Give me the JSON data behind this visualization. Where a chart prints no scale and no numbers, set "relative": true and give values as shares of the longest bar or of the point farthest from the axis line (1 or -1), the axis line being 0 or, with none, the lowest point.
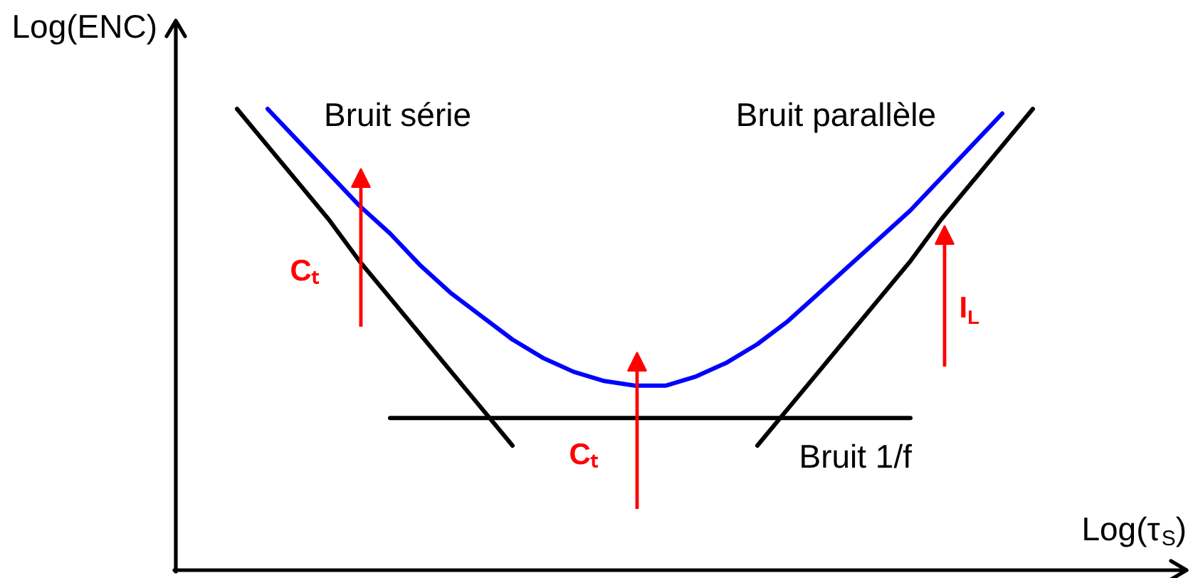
{
  "chart_data": {
    "type": "line",
    "relative": true,
    "xlabel": "Log(τ$_{S}$)",
    "ylabel": "Log(ENC)",
    "categories": [
      null,
      null,
      null,
      null,
      null,
      null,
      null,
      null,
      null,
      null,
      null,
      null,
      null,
      null,
      null,
      null,
      null,
      null,
      null,
      null,
      null,
      null,
      null,
      null,
      null,
      null,
      null
    ],
    "series": [
      {
        "name": "Bruit série",
        "color": "#000000",
        "values": [
          1.0,
          0.92,
          0.84,
          0.76,
          0.67,
          0.59,
          0.51,
          0.43,
          0.35,
          0.27,
          null,
          null,
          null,
          null,
          null,
          null,
          null,
          null,
          null,
          null,
          null,
          null,
          null,
          null,
          null,
          null,
          null
        ]
      },
      {
        "color": "#0000ff",
        "values": [
          null,
          1.0,
          0.93,
          0.86,
          0.79,
          0.73,
          0.66,
          0.6,
          0.55,
          0.5,
          0.46,
          0.43,
          0.41,
          0.4,
          0.4,
          0.42,
          0.45,
          0.49,
          0.54,
          0.6,
          0.66,
          0.72,
          0.78,
          0.85,
          0.92,
          0.99,
          null
        ]
      },
      {
        "name": "Bruit parallèle",
        "color": "#000000",
        "values": [
          null,
          null,
          null,
          null,
          null,
          null,
          null,
          null,
          null,
          null,
          null,
          null,
          null,
          null,
          null,
          null,
          null,
          0.27,
          0.35,
          0.43,
          0.51,
          0.59,
          0.67,
          0.76,
          0.84,
          0.92,
          1.0
        ]
      },
      {
        "name": "Bruit 1/f",
        "color": "#000000",
        "values": [
          null,
          null,
          null,
          null,
          null,
          0.33,
          0.33,
          0.33,
          0.33,
          0.33,
          0.33,
          0.33,
          0.33,
          0.33,
          0.33,
          0.33,
          0.33,
          0.33,
          0.33,
          0.33,
          0.33,
          0.33,
          0.33,
          null,
          null,
          null,
          null
        ]
      }
    ],
    "annotations": [
      "Cₜ",
      "Cₜ",
      "I$_{L}$"
    ]
  }
}
